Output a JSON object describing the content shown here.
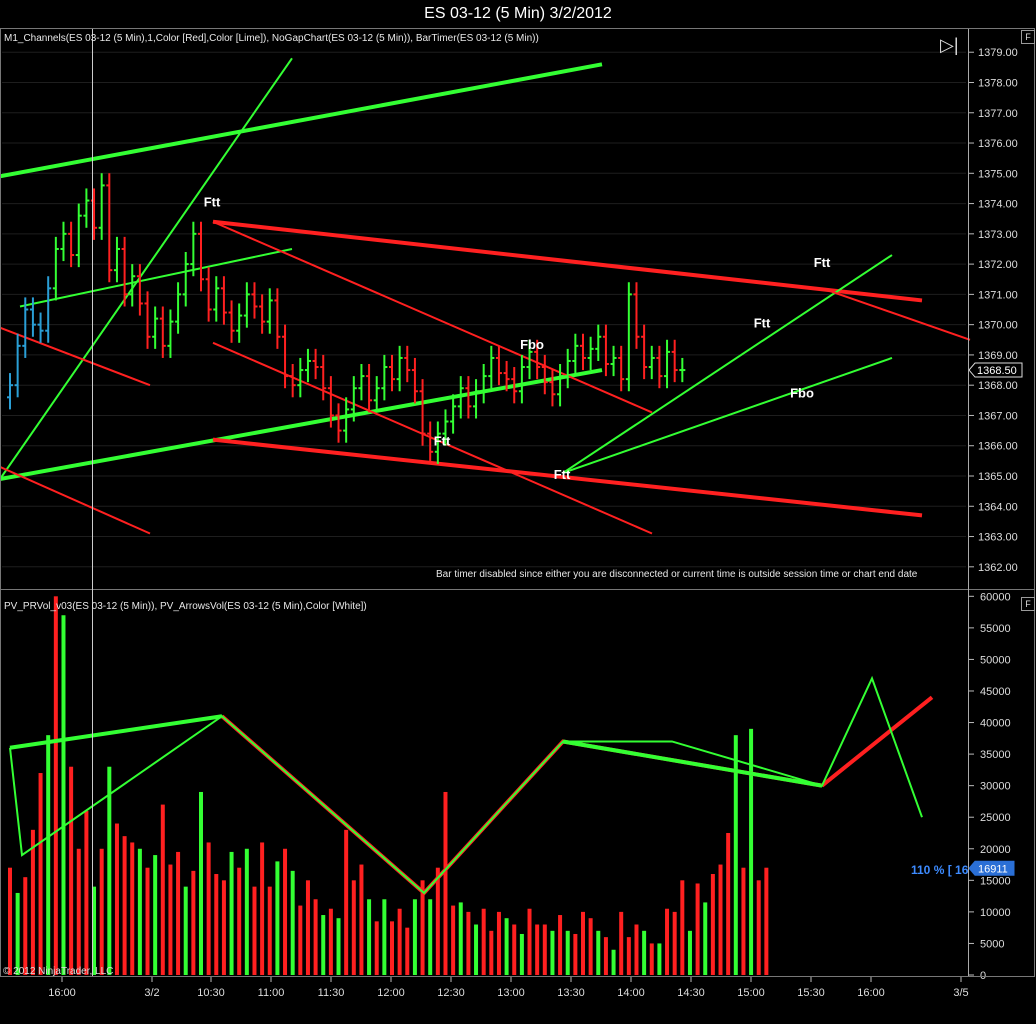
{
  "window_title": "ES 03-12 (5 Min)  3/2/2012",
  "price_panel": {
    "indicator_label": "M1_Channels(ES 03-12 (5 Min),1,Color [Red],Color [Lime]), NoGapChart(ES 03-12 (5 Min)), BarTimer(ES 03-12 (5 Min))",
    "bar_timer_note": "Bar timer disabled since either you are disconnected or current time is outside session time or chart end date",
    "current_price_label": "1368.50",
    "f_button": "F",
    "play_icon": "play-to-end-icon"
  },
  "volume_panel": {
    "indicator_label": "PV_PRVol_v03(ES 03-12 (5 Min)), PV_ArrowsVol(ES 03-12 (5 Min),Color [White])",
    "pct_label": "110 % [ 16",
    "current_volume_label": "16911",
    "f_button": "F",
    "copyright": "© 2012 NinjaTrader, LLC"
  },
  "colors": {
    "up": "#33ff33",
    "down": "#ff2020",
    "bg": "#000000",
    "accent_blue": "#3d8bff"
  },
  "chart_data": [
    {
      "type": "line",
      "title": "ES 03-12 (5 Min)  3/2/2012",
      "ylim": [
        1361.3,
        1379.8
      ],
      "y_ticks": [
        "1362.00",
        "1363.00",
        "1364.00",
        "1365.00",
        "1366.00",
        "1367.00",
        "1368.00",
        "1369.00",
        "1370.00",
        "1371.00",
        "1372.00",
        "1373.00",
        "1374.00",
        "1375.00",
        "1376.00",
        "1377.00",
        "1378.00",
        "1379.00"
      ],
      "x_ticks": [
        "16:00",
        "3/2",
        "10:30",
        "11:00",
        "11:30",
        "12:00",
        "12:30",
        "13:00",
        "13:30",
        "14:00",
        "14:30",
        "15:00",
        "15:30",
        "16:00",
        "3/5"
      ],
      "last_price": 1368.5,
      "annotations": [
        {
          "text": "Ftt",
          "price": 1373.9
        },
        {
          "text": "Ftt",
          "price": 1366.0
        },
        {
          "text": "Fbo",
          "price": 1369.2
        },
        {
          "text": "Ftt",
          "price": 1364.9
        },
        {
          "text": "Ftt",
          "price": 1369.9
        },
        {
          "text": "Fbo",
          "price": 1367.6
        },
        {
          "text": "Ftt",
          "price": 1371.9
        }
      ]
    },
    {
      "type": "bar",
      "ylim": [
        0,
        61000
      ],
      "y_ticks": [
        "0",
        "5000",
        "10000",
        "15000",
        "20000",
        "25000",
        "30000",
        "35000",
        "40000",
        "45000",
        "50000",
        "55000",
        "60000"
      ],
      "last_volume": 16911
    }
  ]
}
